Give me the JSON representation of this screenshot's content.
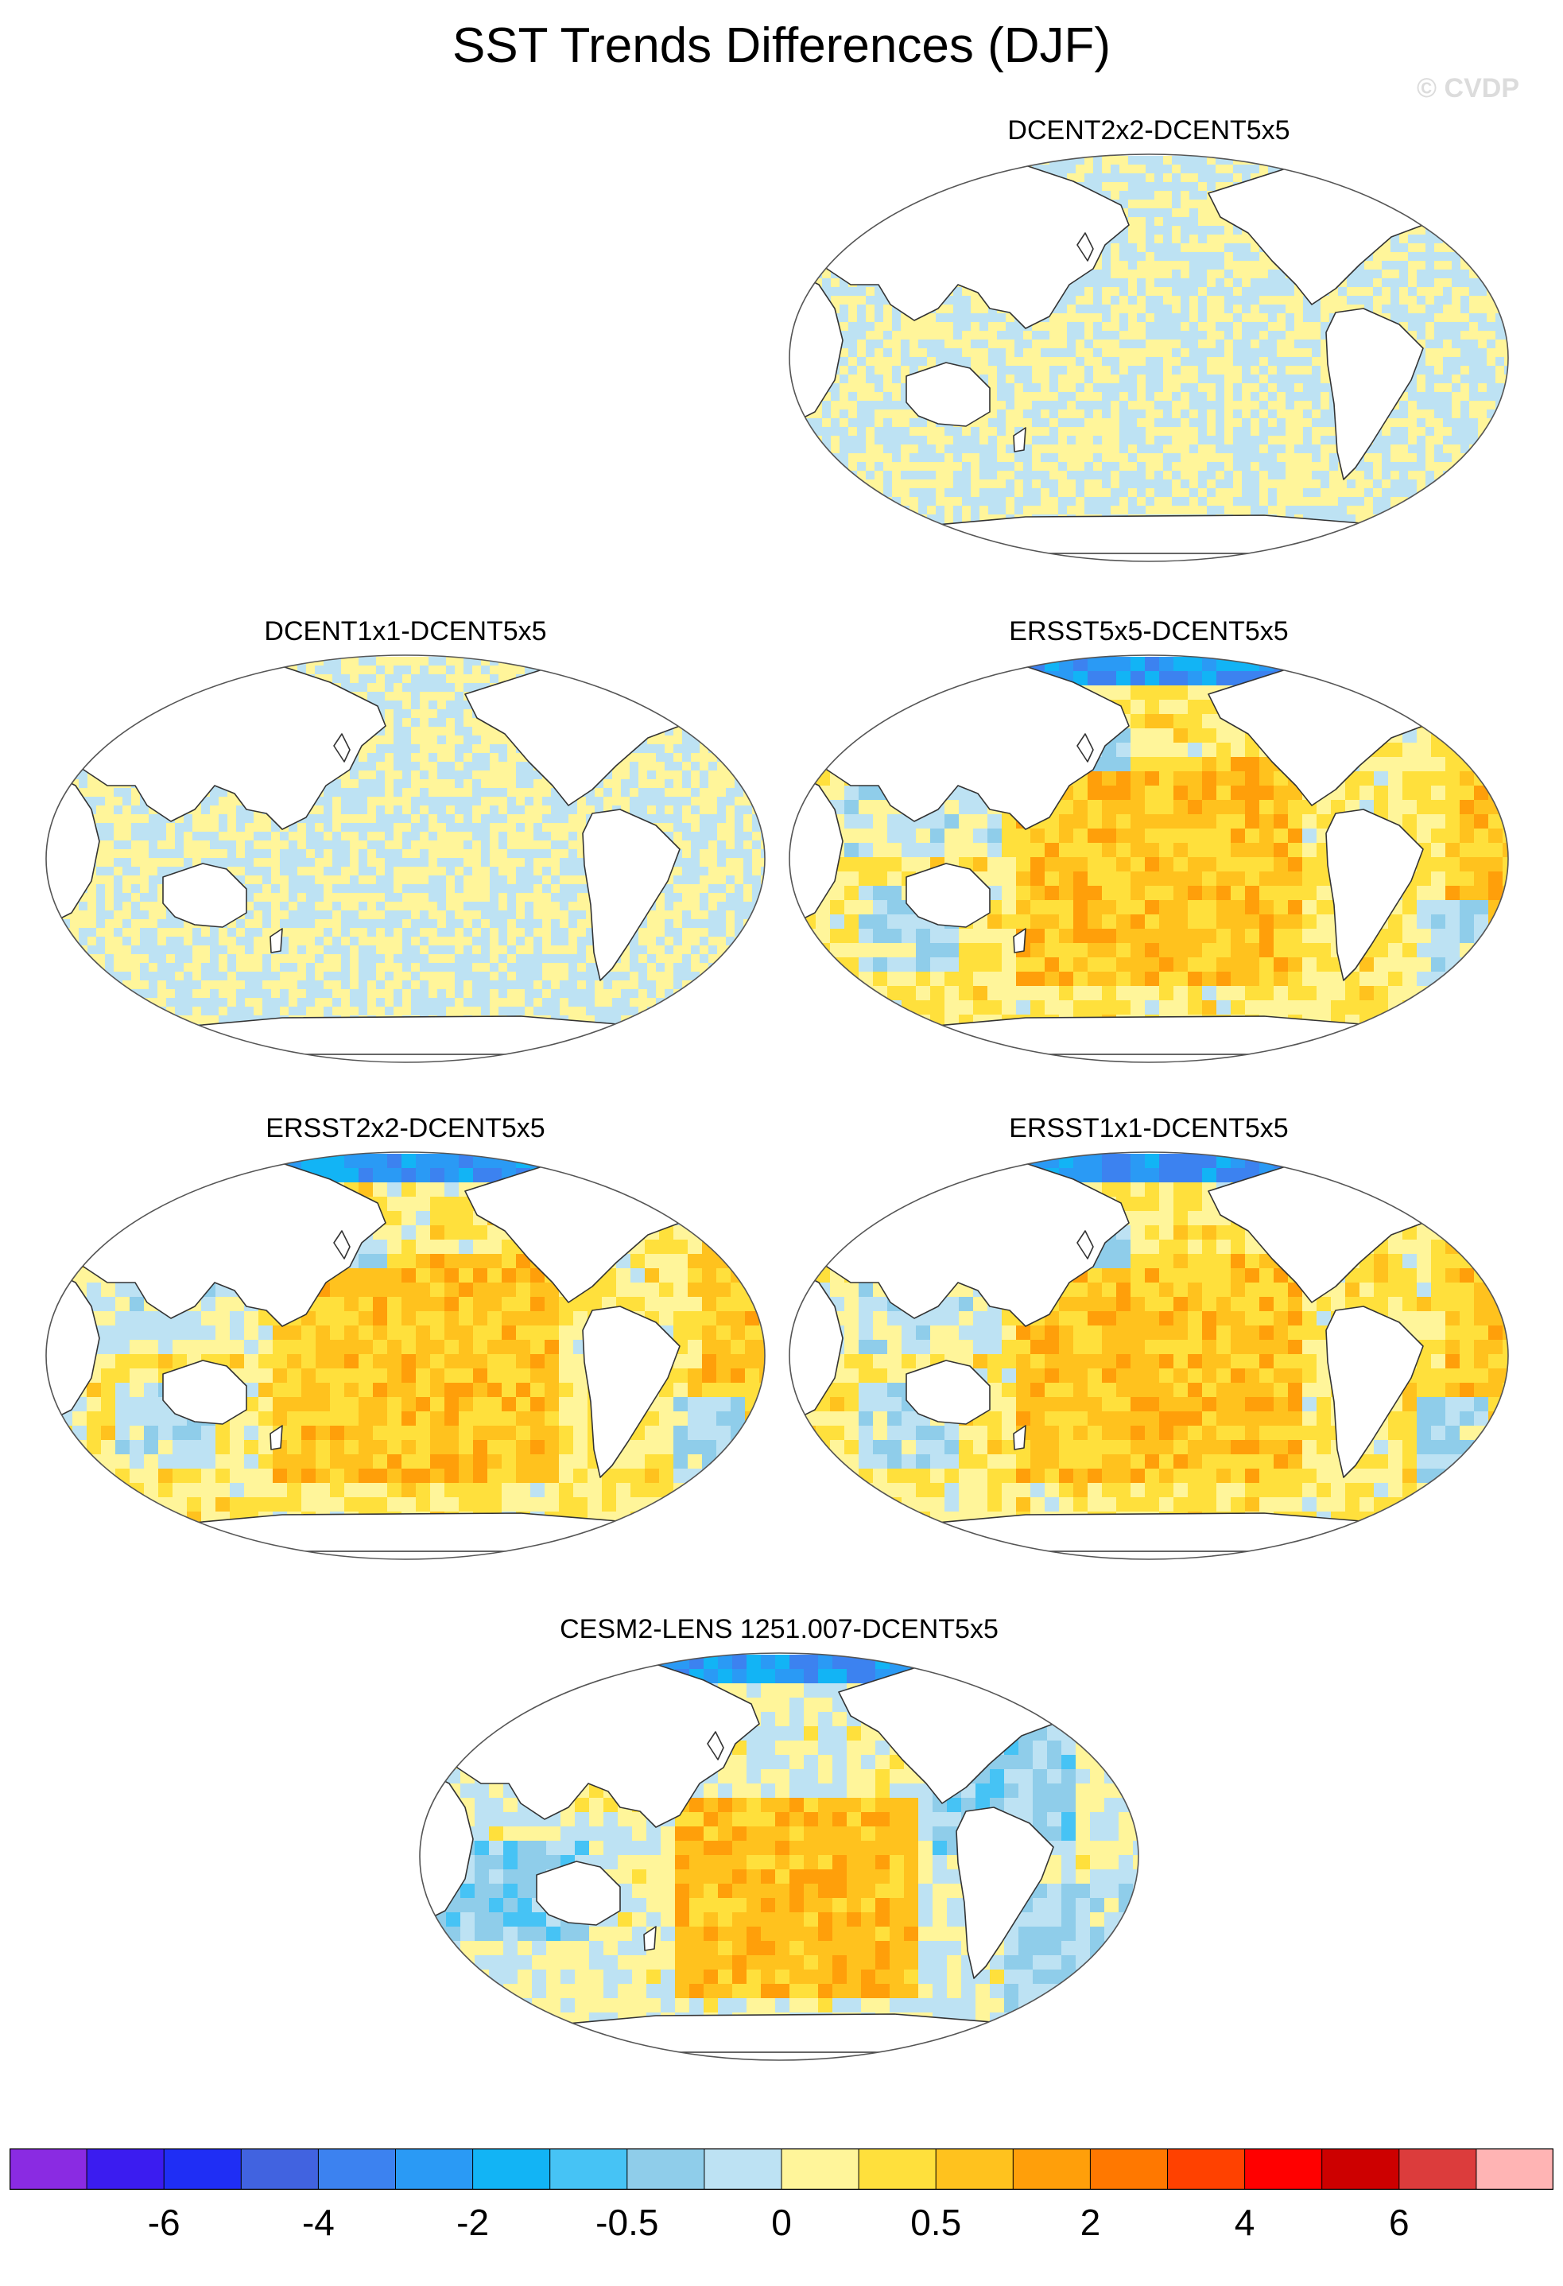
{
  "title": "SST Trends Differences (DJF)",
  "credit": "© CVDP",
  "panels": [
    {
      "label": "DCENT2x2-DCENT5x5",
      "pattern": "noise"
    },
    {
      "label": "DCENT1x1-DCENT5x5",
      "pattern": "noise"
    },
    {
      "label": "ERSST5x5-DCENT5x5",
      "pattern": "warm"
    },
    {
      "label": "ERSST2x2-DCENT5x5",
      "pattern": "warm"
    },
    {
      "label": "ERSST1x1-DCENT5x5",
      "pattern": "warm"
    },
    {
      "label": "CESM2-LENS 1251.007-DCENT5x5",
      "pattern": "model"
    }
  ],
  "colorbar": {
    "colors": [
      "#8a2be2",
      "#3b1cf0",
      "#1f2ef5",
      "#4163e0",
      "#3c82f0",
      "#2a9af5",
      "#12b4f5",
      "#46c3f5",
      "#8fcdea",
      "#bde2f3",
      "#fff59a",
      "#ffe03c",
      "#ffc21e",
      "#ff9f0a",
      "#ff7800",
      "#ff4100",
      "#ff0000",
      "#cd0000",
      "#dc3c3c",
      "#ffb4b4"
    ],
    "labels": [
      "-6",
      "-4",
      "-2",
      "-0.5",
      "0",
      "0.5",
      "2",
      "4",
      "6"
    ]
  }
}
